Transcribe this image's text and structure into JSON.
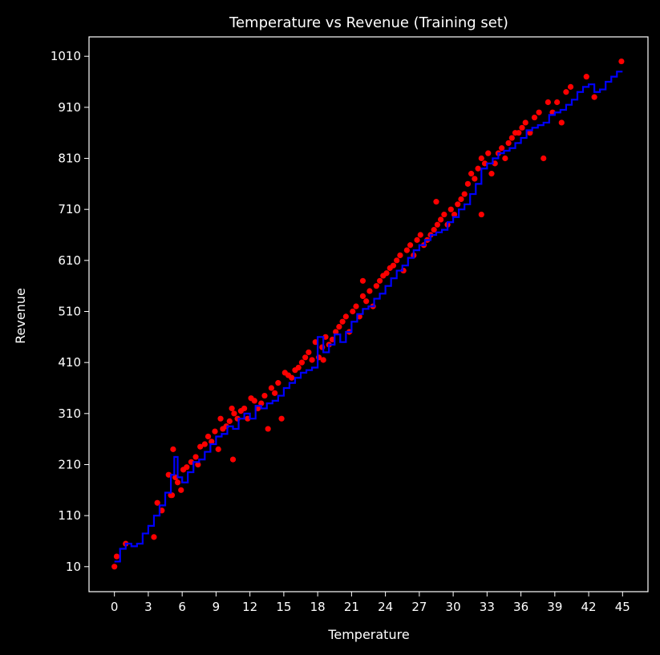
{
  "chart_data": {
    "type": "scatter",
    "title": "Temperature vs Revenue (Training set)",
    "xlabel": "Temperature",
    "ylabel": "Revenue",
    "xlim": [
      -2.25,
      47.25
    ],
    "ylim": [
      -39,
      1048
    ],
    "xticks": [
      0,
      3,
      6,
      9,
      12,
      15,
      18,
      21,
      24,
      27,
      30,
      33,
      36,
      39,
      42,
      45
    ],
    "yticks": [
      10,
      110,
      210,
      310,
      410,
      510,
      610,
      710,
      810,
      910,
      1010
    ],
    "colors": {
      "background": "#000000",
      "axes": "#ffffff",
      "points": "#ff0000",
      "line": "#0000ff"
    },
    "series": [
      {
        "kind": "scatter",
        "color": "#ff0000",
        "x": [
          0.0,
          0.2,
          1.0,
          3.5,
          3.8,
          4.2,
          4.8,
          5.0,
          5.2,
          5.4,
          5.6,
          5.9,
          6.1,
          6.4,
          6.8,
          7.2,
          7.4,
          7.6,
          8.0,
          8.3,
          8.6,
          8.9,
          9.2,
          9.4,
          9.6,
          9.9,
          10.2,
          10.4,
          10.6,
          10.9,
          11.2,
          11.5,
          11.8,
          12.1,
          12.4,
          12.7,
          13.0,
          13.3,
          13.6,
          13.9,
          14.2,
          14.5,
          14.8,
          15.1,
          15.4,
          15.7,
          16.0,
          16.3,
          16.6,
          16.9,
          17.2,
          17.5,
          17.8,
          18.1,
          18.4,
          18.7,
          19.0,
          19.3,
          19.6,
          19.9,
          20.2,
          20.5,
          20.8,
          21.1,
          21.4,
          21.7,
          22.0,
          22.3,
          22.6,
          22.9,
          23.2,
          23.5,
          23.8,
          24.1,
          24.4,
          24.7,
          25.0,
          25.3,
          25.6,
          25.9,
          26.2,
          26.5,
          26.8,
          27.1,
          27.4,
          27.7,
          28.0,
          28.3,
          28.6,
          28.9,
          29.2,
          29.5,
          29.8,
          30.1,
          30.4,
          30.7,
          31.0,
          31.3,
          31.6,
          31.9,
          32.2,
          32.5,
          32.8,
          33.1,
          33.4,
          33.7,
          34.0,
          34.3,
          34.6,
          34.9,
          35.2,
          35.5,
          35.8,
          36.1,
          36.4,
          36.8,
          37.2,
          37.6,
          38.0,
          38.4,
          38.8,
          39.2,
          39.6,
          40.0,
          40.4,
          41.8,
          42.5,
          44.9,
          5.1,
          10.5,
          18.5,
          22.0,
          28.5,
          32.5
        ],
        "y": [
          10,
          30,
          55,
          68,
          135,
          120,
          190,
          150,
          240,
          185,
          175,
          160,
          200,
          205,
          215,
          225,
          210,
          245,
          250,
          265,
          255,
          275,
          240,
          300,
          280,
          285,
          295,
          320,
          310,
          300,
          315,
          320,
          300,
          340,
          335,
          320,
          330,
          345,
          280,
          360,
          350,
          370,
          300,
          390,
          385,
          380,
          395,
          400,
          410,
          420,
          430,
          415,
          450,
          420,
          440,
          460,
          445,
          455,
          470,
          480,
          490,
          500,
          470,
          510,
          520,
          500,
          540,
          530,
          550,
          520,
          560,
          570,
          580,
          585,
          595,
          600,
          610,
          620,
          590,
          630,
          640,
          620,
          650,
          660,
          640,
          650,
          660,
          670,
          680,
          690,
          700,
          680,
          710,
          700,
          720,
          730,
          740,
          760,
          780,
          770,
          790,
          810,
          800,
          820,
          780,
          800,
          820,
          830,
          810,
          840,
          850,
          860,
          860,
          870,
          880,
          860,
          890,
          900,
          810,
          920,
          900,
          920,
          880,
          940,
          950,
          970,
          930,
          1000,
          150,
          220,
          415,
          570,
          725,
          700
        ]
      },
      {
        "kind": "line",
        "color": "#0000ff",
        "x": [
          0.0,
          0.5,
          1.0,
          1.5,
          2.0,
          2.5,
          3.0,
          3.5,
          4.0,
          4.5,
          5.0,
          5.3,
          5.6,
          6.0,
          6.5,
          7.0,
          7.5,
          8.0,
          8.5,
          9.0,
          9.5,
          10.0,
          10.5,
          11.0,
          11.5,
          12.0,
          12.5,
          13.0,
          13.5,
          14.0,
          14.5,
          15.0,
          15.5,
          16.0,
          16.5,
          17.0,
          17.5,
          18.0,
          18.5,
          19.0,
          19.5,
          20.0,
          20.5,
          21.0,
          21.5,
          22.0,
          22.5,
          23.0,
          23.5,
          24.0,
          24.5,
          25.0,
          25.5,
          26.0,
          26.5,
          27.0,
          27.5,
          28.0,
          28.5,
          29.0,
          29.5,
          30.0,
          30.5,
          31.0,
          31.5,
          32.0,
          32.5,
          33.0,
          33.5,
          34.0,
          34.5,
          35.0,
          35.5,
          36.0,
          36.5,
          37.0,
          37.5,
          38.0,
          38.5,
          39.0,
          39.5,
          40.0,
          40.5,
          41.0,
          41.5,
          42.0,
          42.5,
          43.0,
          43.5,
          44.0,
          44.5,
          45.0
        ],
        "y": [
          20,
          45,
          55,
          50,
          55,
          75,
          90,
          110,
          130,
          155,
          190,
          225,
          185,
          175,
          195,
          215,
          220,
          235,
          250,
          265,
          270,
          285,
          280,
          300,
          310,
          300,
          325,
          320,
          330,
          335,
          345,
          360,
          370,
          380,
          390,
          395,
          400,
          460,
          430,
          445,
          465,
          450,
          470,
          490,
          505,
          515,
          520,
          535,
          545,
          560,
          575,
          590,
          600,
          615,
          630,
          640,
          650,
          660,
          665,
          670,
          685,
          695,
          710,
          720,
          740,
          760,
          790,
          800,
          810,
          820,
          825,
          830,
          840,
          850,
          865,
          870,
          875,
          880,
          895,
          900,
          905,
          915,
          925,
          940,
          950,
          955,
          940,
          945,
          960,
          970,
          980,
          980
        ]
      }
    ]
  }
}
